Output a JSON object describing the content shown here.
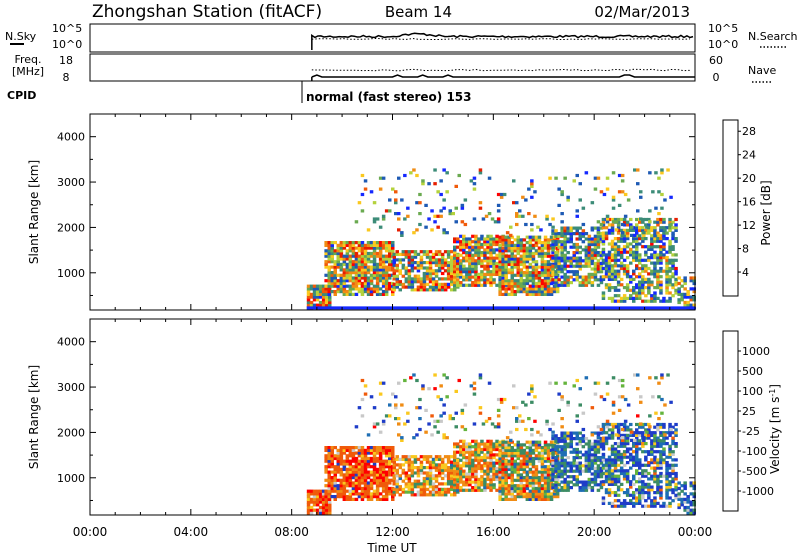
{
  "header": {
    "station": "Zhongshan Station (fitACF)",
    "beam": "Beam 14",
    "date": "02/Mar/2013"
  },
  "panels": {
    "nsky": {
      "label": "N.Sky",
      "right_label": "N.Search",
      "left_ticks": [
        "10^5",
        "10^0"
      ],
      "right_ticks": [
        "10^5",
        "10^0"
      ]
    },
    "freq": {
      "label_line1": "Freq.",
      "label_line2": "[MHz]",
      "right_label": "Nave",
      "left_ticks": [
        "18",
        "8"
      ],
      "right_ticks": [
        "60",
        "0"
      ]
    },
    "cpid": {
      "label": "CPID",
      "mode_text": "normal (fast stereo) 153"
    }
  },
  "chart_data": [
    {
      "type": "heatmap",
      "title": "",
      "ylabel": "Slant Range [km]",
      "xlabel": "",
      "ylim": [
        180,
        4500
      ],
      "yticks": [
        "1000",
        "2000",
        "3000",
        "4000"
      ],
      "colorbar": {
        "label": "Power [dB]",
        "ticks": [
          "4",
          "8",
          "12",
          "16",
          "20",
          "24",
          "28"
        ],
        "range": [
          0,
          30
        ],
        "colors": [
          "#1428ff",
          "#1e5ab4",
          "#3c8c78",
          "#6aaa50",
          "#b4d23c",
          "#fac81e",
          "#f08c14",
          "#f05a0a",
          "#e61e00",
          "#ff0000"
        ]
      }
    },
    {
      "type": "heatmap",
      "title": "",
      "ylabel": "Slant Range [km]",
      "xlabel": "Time UT",
      "ylim": [
        180,
        4500
      ],
      "yticks": [
        "1000",
        "2000",
        "3000",
        "4000"
      ],
      "xticks": [
        "00:00",
        "04:00",
        "08:00",
        "12:00",
        "16:00",
        "20:00",
        "00:00"
      ],
      "colorbar": {
        "label": "Velocity [m s^-1]",
        "ticks": [
          "1000",
          "500",
          "100",
          "25",
          "-25",
          "-100",
          "-500",
          "-1000"
        ],
        "colors": [
          "#1e3cc8",
          "#1e6eb4",
          "#3c8c64",
          "#64b43c",
          "#c8c8c8",
          "#fac81e",
          "#f08c14",
          "#f05a0a",
          "#ff0000"
        ]
      }
    }
  ]
}
